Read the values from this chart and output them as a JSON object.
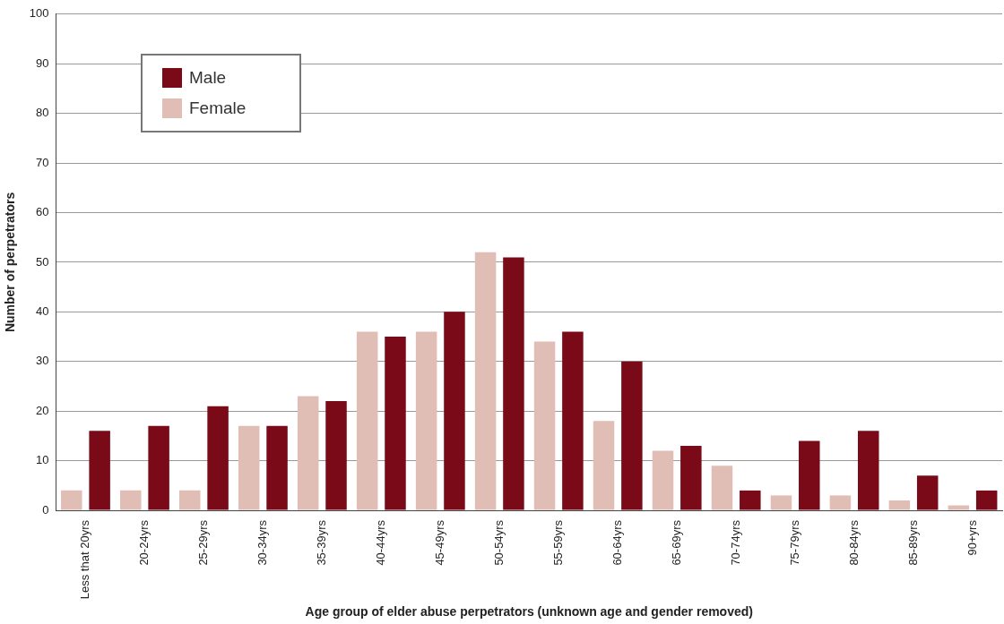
{
  "chart_data": {
    "type": "bar",
    "xlabel": "Age group of elder abuse perpetrators (unknown age and gender removed)",
    "ylabel": "Number of perpetrators",
    "categories": [
      "Less that 20yrs",
      "20-24yrs",
      "25-29yrs",
      "30-34yrs",
      "35-39yrs",
      "40-44yrs",
      "45-49yrs",
      "50-54yrs",
      "55-59yrs",
      "60-64yrs",
      "65-69yrs",
      "70-74yrs",
      "75-79yrs",
      "80-84yrs",
      "85-89yrs",
      "90+yrs"
    ],
    "series": [
      {
        "name": "Female",
        "color": "#e0bdb5",
        "values": [
          4,
          4,
          4,
          17,
          23,
          36,
          36,
          52,
          34,
          18,
          12,
          9,
          3,
          3,
          2,
          1
        ]
      },
      {
        "name": "Male",
        "color": "#7b0a18",
        "values": [
          16,
          17,
          21,
          17,
          22,
          35,
          40,
          51,
          36,
          30,
          13,
          4,
          14,
          16,
          7,
          4
        ]
      }
    ],
    "ylim": [
      0,
      100
    ],
    "yticks": [
      0,
      10,
      20,
      30,
      40,
      50,
      60,
      70,
      80,
      90,
      100
    ],
    "grid": "y",
    "legend": "top left"
  }
}
